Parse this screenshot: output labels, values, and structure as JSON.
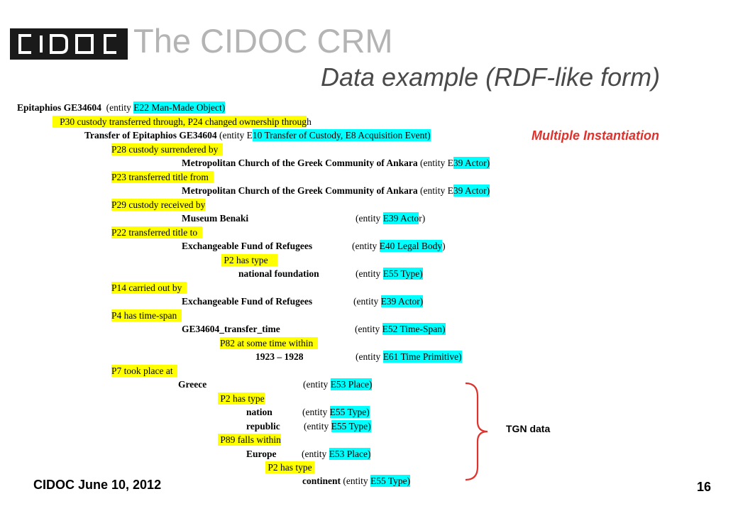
{
  "header": {
    "logo_text": "CIDOC",
    "title": "The CIDOC CRM",
    "subtitle": "Data example (RDF-like form)"
  },
  "annotations": {
    "multiple_instantiation": "Multiple Instantiation",
    "tgn_data": "TGN data"
  },
  "lines": {
    "l1": {
      "label": "Epitaphios GE34604",
      "mid": "(entity ",
      "cyan": "E22 Man-Made Object)"
    },
    "l2": {
      "yellow": "P30 custody transferred through, P24 changed ownership throug",
      "after": "h"
    },
    "l3": {
      "label": "Transfer of Epitaphios GE34604",
      "mid": "(entity E",
      "cyan": "10 Transfer of Custody,  E8 Acquisition Event)"
    },
    "l4": {
      "yellow": "P28 custody surrendered by"
    },
    "l5": {
      "label": "Metropolitan  Church of the Greek Community of Ankara",
      "mid": "(entity E",
      "cyan": "39 Actor)"
    },
    "l6": {
      "yellow": "P23 transferred title from"
    },
    "l7": {
      "label": "Metropolitan  Church of the Greek Community of Ankara",
      "mid": "(entity E",
      "cyan": "39 Actor)"
    },
    "l8": {
      "yellow": "P29 custody received by"
    },
    "l9": {
      "label": "Museum Benaki",
      "mid": "(entity ",
      "cyan": "E39 Acto",
      "after": "r)"
    },
    "l10": {
      "yellow": "P22 transferred title to"
    },
    "l11": {
      "label": "Exchangeable Fund of Refugees",
      "mid": "(entity ",
      "cyan": "E40 Legal Body",
      "after": ")"
    },
    "l12": {
      "yellow": "P2 has type"
    },
    "l13": {
      "label": "national foundation",
      "mid": "(entity ",
      "cyan": "E55 Type)"
    },
    "l14": {
      "yellow": "P14 carried out by"
    },
    "l15": {
      "label": "Exchangeable Fund of Refugees",
      "mid": "(entity ",
      "cyan": "E39 Actor)"
    },
    "l16": {
      "yellow": "P4 has time-span"
    },
    "l17": {
      "label": "GE34604_transfer_time",
      "mid": "(entity ",
      "cyan": "E52 Time-Span)"
    },
    "l18": {
      "yellow": "P82 at some time  within"
    },
    "l19": {
      "label": "1923 – 1928",
      "mid": "(entity ",
      "cyan": "E61 Time Primitive)"
    },
    "l20": {
      "yellow": "P7 took place at"
    },
    "l21": {
      "label": "Greece",
      "mid": "(entity ",
      "cyan": "E53 Place)"
    },
    "l22": {
      "yellow": "P2 has type"
    },
    "l23": {
      "label": "nation",
      "mid": "(entity ",
      "cyan": "E55 Type)"
    },
    "l24": {
      "label": "republic",
      "mid": "(entity ",
      "cyan": "E55 Type)"
    },
    "l25": {
      "yellow": "P89 falls within"
    },
    "l26": {
      "label": "Europe",
      "mid": "(entity ",
      "cyan": "E53 Place)"
    },
    "l27": {
      "yellow": "P2 has type"
    },
    "l28": {
      "label": "continent",
      "mid": "(entity ",
      "cyan": "E55 Type)"
    }
  },
  "footer": {
    "left": "CIDOC June 10, 2012",
    "page": "16"
  },
  "colors": {
    "highlight_yellow": "#ffff00",
    "highlight_cyan": "#00ffff",
    "title_gray": "#b4b4b4",
    "accent_red": "#e0322d"
  }
}
